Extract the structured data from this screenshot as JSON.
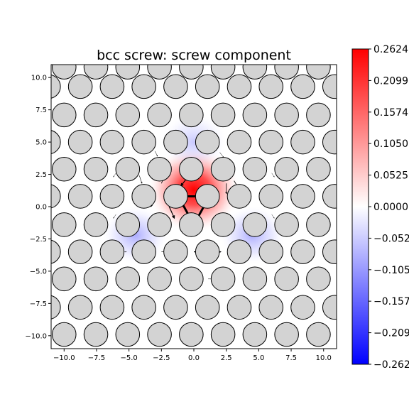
{
  "chart_data": {
    "type": "heatmap",
    "title": "bcc screw: screw component",
    "xlabel": "",
    "ylabel": "",
    "xlim": [
      -11.0,
      11.0
    ],
    "ylim": [
      -11.0,
      11.0
    ],
    "xticks": [
      "−10.0",
      "−7.5",
      "−5.0",
      "−2.5",
      "0.0",
      "2.5",
      "5.0",
      "7.5",
      "10.0"
    ],
    "xtick_values": [
      -10,
      -7.5,
      -5,
      -2.5,
      0,
      2.5,
      5,
      7.5,
      10
    ],
    "yticks": [
      "−10.0",
      "−7.5",
      "−5.0",
      "−2.5",
      "0.0",
      "2.5",
      "5.0",
      "7.5",
      "10.0"
    ],
    "ytick_values": [
      -10,
      -7.5,
      -5,
      -2.5,
      0,
      2.5,
      5,
      7.5,
      10
    ],
    "grid": false,
    "colormap": "bwr",
    "colorbar": {
      "vmin": -0.2624,
      "vmax": 0.2624,
      "tick_labels": [
        "0.2624",
        "0.2099",
        "0.1574",
        "0.1050",
        "0.0525",
        "0.0000",
        "−0.0525",
        "−0.1050",
        "−0.1574",
        "−0.2099",
        "−0.2624"
      ],
      "tick_values": [
        0.2624,
        0.2099,
        0.1574,
        0.105,
        0.0525,
        0.0,
        -0.0525,
        -0.105,
        -0.1574,
        -0.2099,
        -0.2624
      ]
    },
    "colors": {
      "positive": "#ff0000",
      "negative": "#0000ff",
      "zero": "#ffffff",
      "atom_fill": "#d3d3d3",
      "atom_edge": "#000000",
      "arrow": "#000000"
    },
    "atom_rows": [
      {
        "y": 10.8,
        "x_start": -10.0,
        "n": 10
      },
      {
        "y": 9.3,
        "x_start": -11.2,
        "n": 10
      },
      {
        "y": 7.1,
        "x_start": -10.0,
        "n": 10
      },
      {
        "y": 5.0,
        "x_start": -11.2,
        "n": 10
      },
      {
        "y": 2.9,
        "x_start": -10.0,
        "n": 10
      },
      {
        "y": 0.8,
        "x_start": -11.2,
        "n": 10
      },
      {
        "y": -1.4,
        "x_start": -10.0,
        "n": 10
      },
      {
        "y": -3.5,
        "x_start": -11.2,
        "n": 10
      },
      {
        "y": -5.6,
        "x_start": -10.0,
        "n": 10
      },
      {
        "y": -7.8,
        "x_start": -11.2,
        "n": 10
      },
      {
        "y": -9.9,
        "x_start": -10.0,
        "n": 10
      }
    ],
    "atom_spacing_x": 2.45,
    "density_centers": [
      {
        "x": 0.0,
        "y": 1.3,
        "value": 0.2624
      },
      {
        "x": -4.5,
        "y": -2.2,
        "value": -0.05
      },
      {
        "x": 4.5,
        "y": -2.2,
        "value": -0.05
      },
      {
        "x": 0.0,
        "y": 5.0,
        "value": -0.02
      }
    ],
    "arrows": [
      {
        "from": [
          1.2,
          0.8
        ],
        "to": [
          -1.2,
          0.8
        ],
        "weight": 3
      },
      {
        "from": [
          -1.2,
          0.8
        ],
        "to": [
          0.0,
          -1.4
        ],
        "weight": 3
      },
      {
        "from": [
          0.0,
          -1.4
        ],
        "to": [
          1.2,
          0.8
        ],
        "weight": 3
      },
      {
        "from": [
          0.0,
          2.9
        ],
        "to": [
          -1.0,
          1.6
        ],
        "weight": 1.2
      },
      {
        "from": [
          -1.9,
          0.0
        ],
        "to": [
          -1.5,
          -0.9
        ],
        "weight": 1.2
      },
      {
        "from": [
          1.5,
          -1.4
        ],
        "to": [
          2.4,
          -1.4
        ],
        "weight": 1.2
      },
      {
        "from": [
          -2.6,
          -1.4
        ],
        "to": [
          -1.8,
          -1.4
        ],
        "weight": 1.2
      },
      {
        "from": [
          0.0,
          -3.5
        ],
        "to": [
          0.8,
          -3.5
        ],
        "weight": 1.2
      },
      {
        "from": [
          -3.0,
          0.8
        ],
        "to": [
          -3.3,
          0.0
        ],
        "weight": 0.8
      },
      {
        "from": [
          2.5,
          1.8
        ],
        "to": [
          2.5,
          1.0
        ],
        "weight": 0.8
      },
      {
        "from": [
          -2.5,
          1.8
        ],
        "to": [
          -2.2,
          2.5
        ],
        "weight": 0.8
      },
      {
        "from": [
          3.1,
          2.0
        ],
        "to": [
          3.4,
          1.5
        ],
        "weight": 0.8
      },
      {
        "from": [
          -4.2,
          2.4
        ],
        "to": [
          -4.0,
          1.8
        ],
        "weight": 0.6
      },
      {
        "from": [
          1.6,
          -3.5
        ],
        "to": [
          2.1,
          -3.5
        ],
        "weight": 0.6
      },
      {
        "from": [
          -2.5,
          -3.5
        ],
        "to": [
          -1.9,
          -3.5
        ],
        "weight": 0.6
      },
      {
        "from": [
          1.1,
          -5.6
        ],
        "to": [
          1.5,
          -5.6
        ],
        "weight": 0.5
      },
      {
        "from": [
          -3.0,
          4.3
        ],
        "to": [
          -2.8,
          3.9
        ],
        "weight": 0.5
      },
      {
        "from": [
          2.0,
          4.2
        ],
        "to": [
          2.3,
          3.8
        ],
        "weight": 0.5
      },
      {
        "from": [
          -1.5,
          4.5
        ],
        "to": [
          -1.7,
          4.1
        ],
        "weight": 0.5
      },
      {
        "from": [
          3.4,
          -3.5
        ],
        "to": [
          3.8,
          -3.5
        ],
        "weight": 0.5
      },
      {
        "from": [
          -3.6,
          -5.6
        ],
        "to": [
          -3.3,
          -5.6
        ],
        "weight": 0.4
      },
      {
        "from": [
          -6.0,
          2.6
        ],
        "to": [
          -6.2,
          2.3
        ],
        "weight": 0.4
      },
      {
        "from": [
          6.0,
          2.6
        ],
        "to": [
          6.2,
          2.3
        ],
        "weight": 0.4
      },
      {
        "from": [
          -6.0,
          -0.6
        ],
        "to": [
          -6.2,
          -0.9
        ],
        "weight": 0.4
      },
      {
        "from": [
          6.0,
          -0.6
        ],
        "to": [
          6.2,
          -0.9
        ],
        "weight": 0.4
      },
      {
        "from": [
          -5.5,
          -3.5
        ],
        "to": [
          -5.2,
          -3.5
        ],
        "weight": 0.4
      },
      {
        "from": [
          5.3,
          -3.5
        ],
        "to": [
          5.6,
          -3.5
        ],
        "weight": 0.4
      }
    ]
  }
}
